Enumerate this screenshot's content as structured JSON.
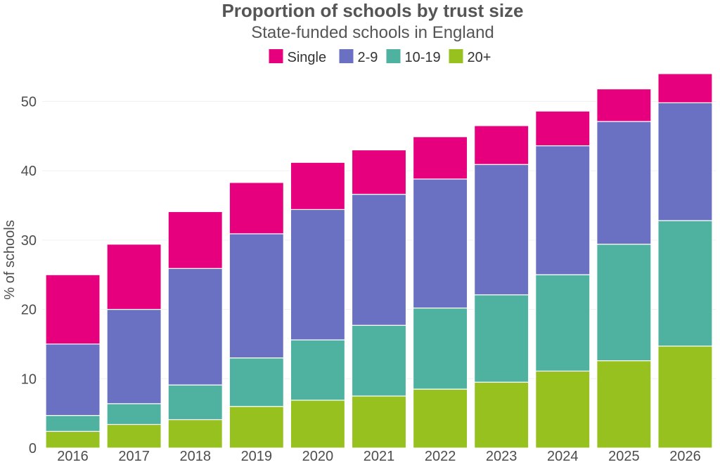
{
  "chart_data": {
    "type": "bar",
    "stacked": true,
    "title": "Proportion of schools by trust size",
    "subtitle": "State-funded schools in England",
    "xlabel": "",
    "ylabel": "% of schools",
    "ylim": [
      0,
      55
    ],
    "yticks": [
      0,
      10,
      20,
      30,
      40,
      50
    ],
    "grid": true,
    "legend_position": "top-center",
    "categories": [
      "2016",
      "2017",
      "2018",
      "2019",
      "2020",
      "2021",
      "2022",
      "2023",
      "2024",
      "2025",
      "2026"
    ],
    "series": [
      {
        "name": "20+",
        "color": "#97c11f",
        "values": [
          2.4,
          3.4,
          4.1,
          6.0,
          6.9,
          7.5,
          8.5,
          9.5,
          11.1,
          12.6,
          14.7
        ]
      },
      {
        "name": "10-19",
        "color": "#4fb1a0",
        "values": [
          2.3,
          3.0,
          5.0,
          7.0,
          8.7,
          10.2,
          11.7,
          12.6,
          13.9,
          16.8,
          18.1
        ]
      },
      {
        "name": "2-9",
        "color": "#6a71c2",
        "values": [
          10.3,
          13.6,
          16.8,
          17.9,
          18.8,
          18.9,
          18.6,
          18.8,
          18.6,
          17.7,
          17.0
        ]
      },
      {
        "name": "Single",
        "color": "#e6007e",
        "values": [
          10.0,
          9.4,
          8.2,
          7.4,
          6.8,
          6.4,
          6.1,
          5.6,
          5.0,
          4.7,
          4.2
        ]
      }
    ],
    "legend_order": [
      "Single",
      "2-9",
      "10-19",
      "20+"
    ]
  }
}
